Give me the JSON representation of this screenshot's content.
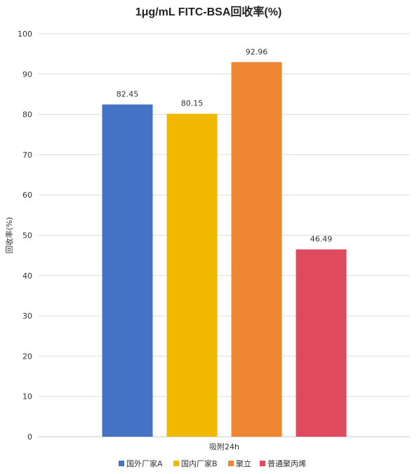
{
  "chart_data": {
    "type": "bar",
    "title": "1μg/mL FITC-BSA回收率(%)",
    "categories": [
      "吸附24h"
    ],
    "series": [
      {
        "name": "国外厂家A",
        "values": [
          82.45
        ],
        "color": "#4472C4",
        "label": "82.45"
      },
      {
        "name": "国内厂家B",
        "values": [
          80.15
        ],
        "color": "#F0B800",
        "label": "80.15"
      },
      {
        "name": "聚立",
        "values": [
          92.96
        ],
        "color": "#ED8531",
        "label": "92.96"
      },
      {
        "name": "普通聚丙烯",
        "values": [
          46.49
        ],
        "color": "#E04A5E",
        "label": "46.49"
      }
    ],
    "xlabel": "吸附24h",
    "ylabel": "回收率(%)",
    "ylim": [
      0,
      100
    ],
    "yticks": [
      "0",
      "10",
      "20",
      "30",
      "40",
      "50",
      "60",
      "70",
      "80",
      "90",
      "100"
    ],
    "grid": true,
    "legend_position": "bottom"
  }
}
